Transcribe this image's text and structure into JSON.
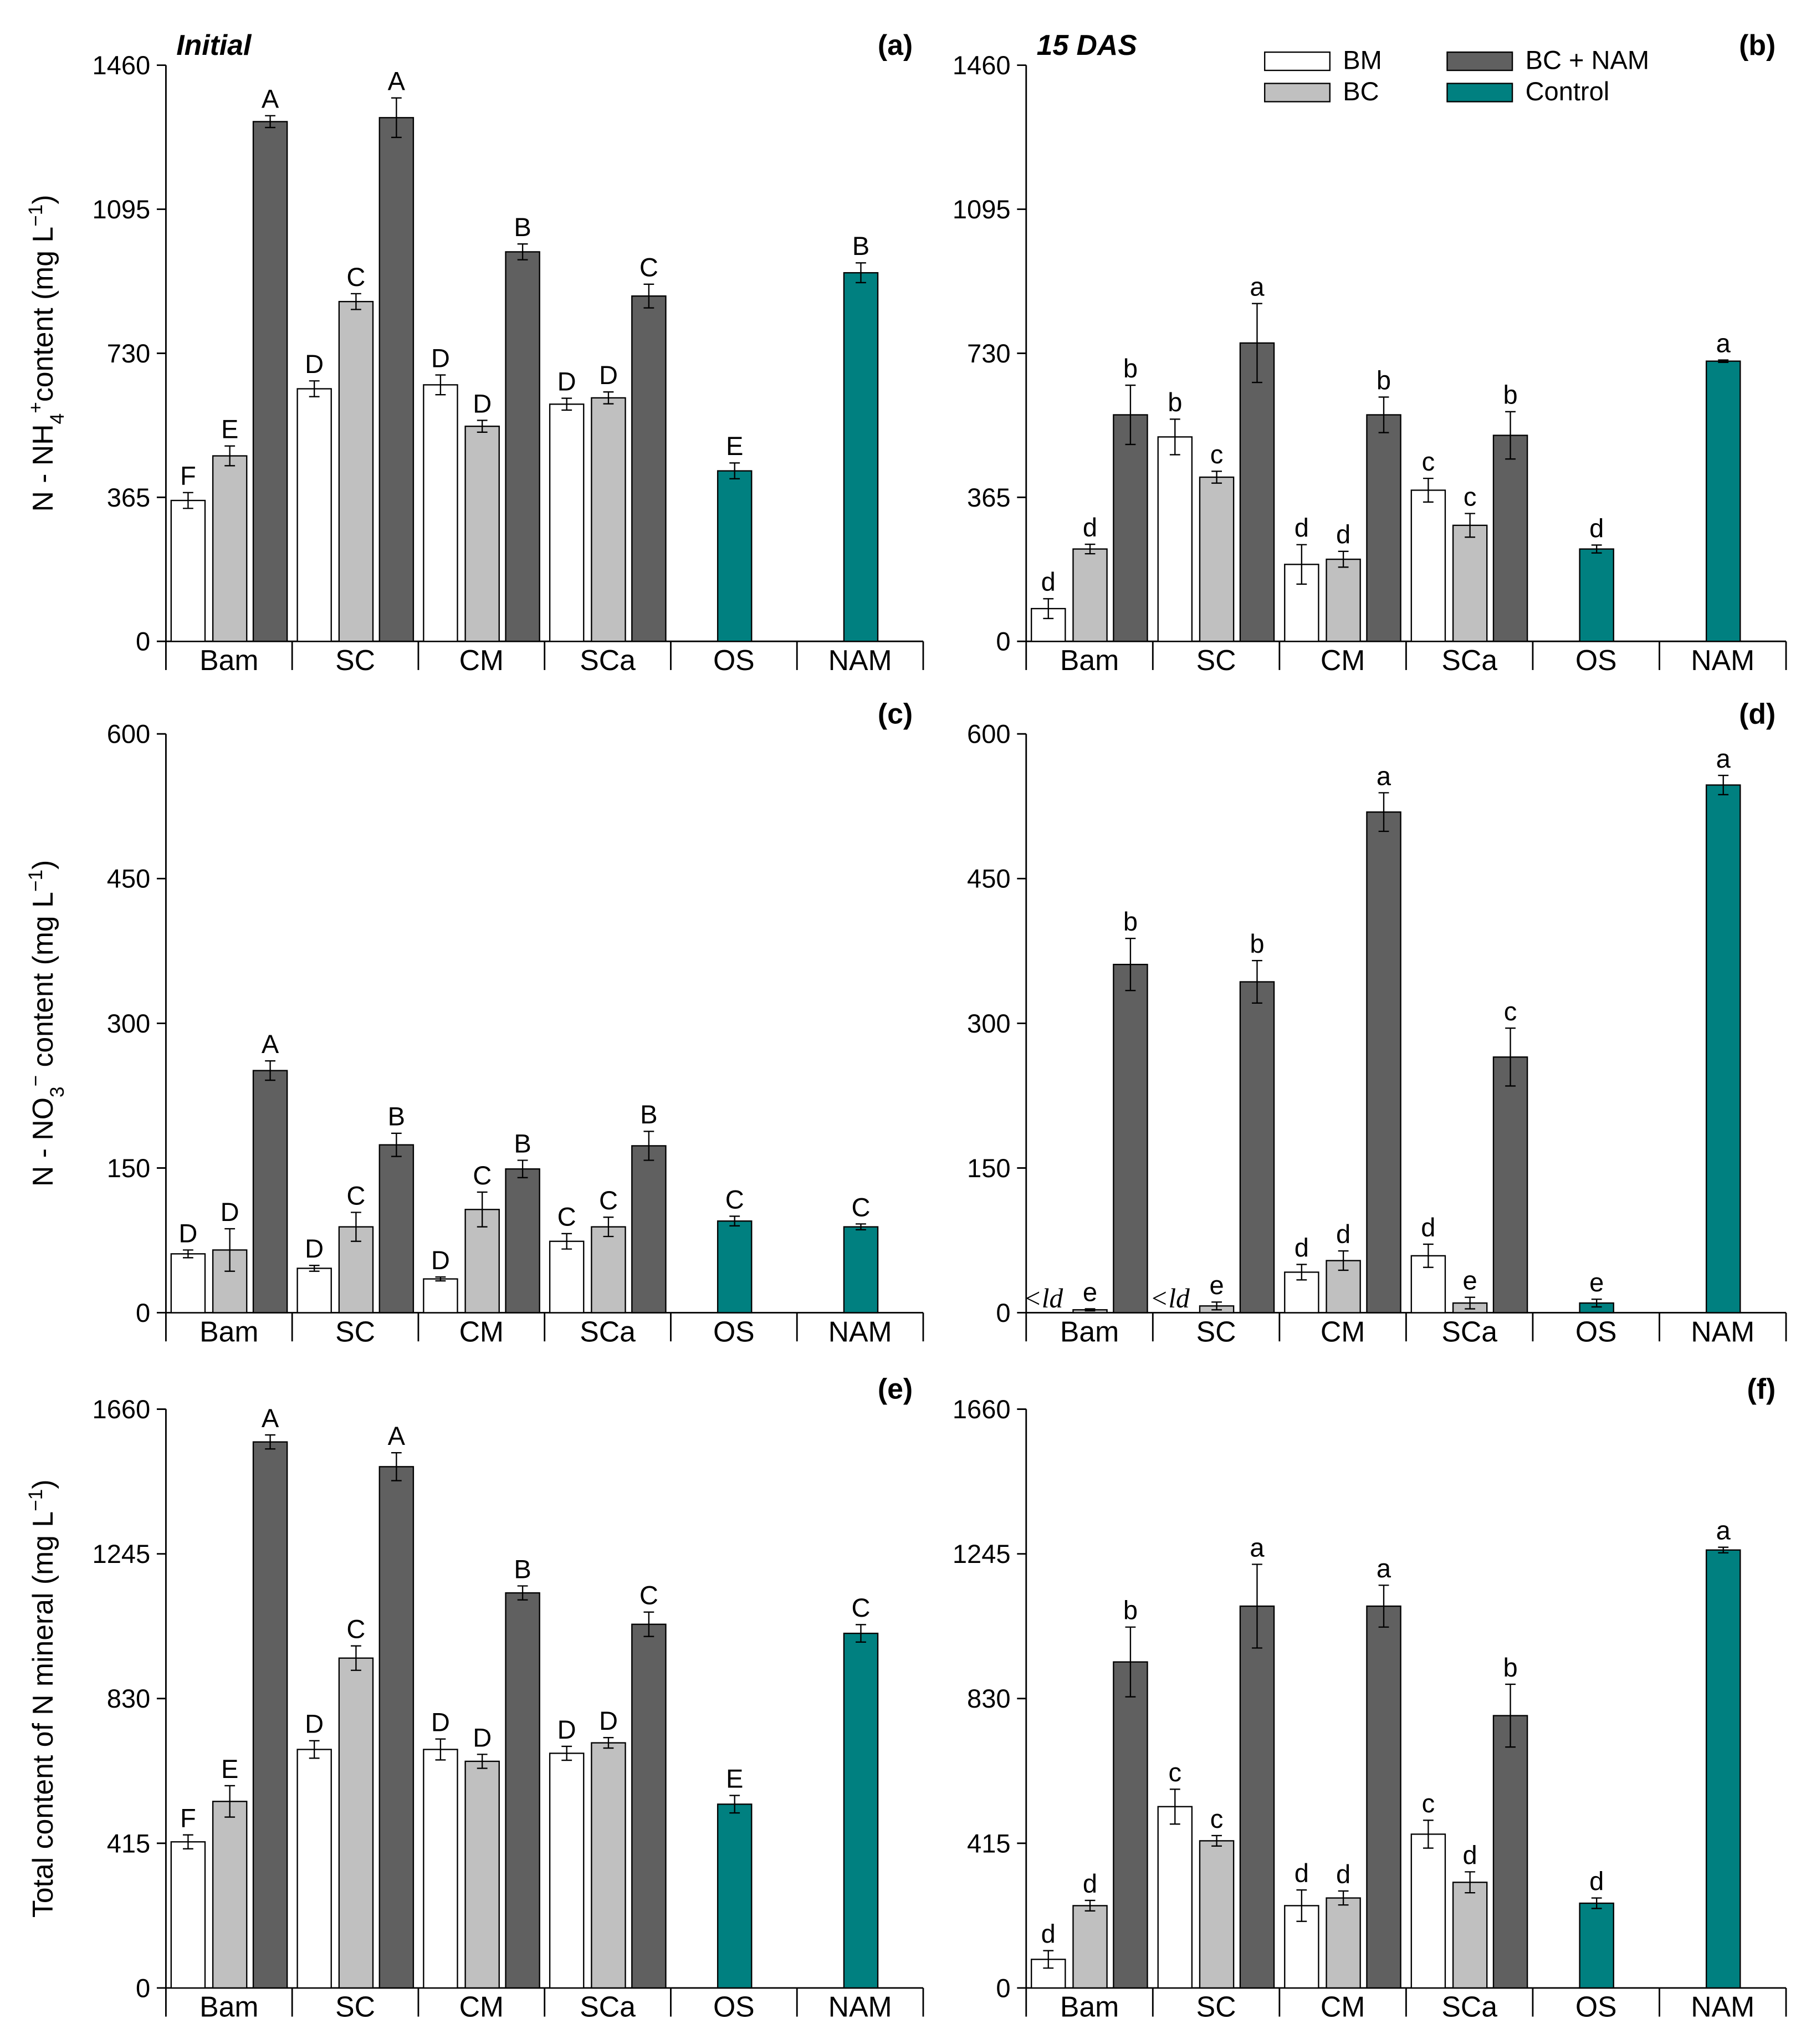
{
  "legend": [
    {
      "name": "BM",
      "color": "#ffffff"
    },
    {
      "name": "BC",
      "color": "#c0c0c0"
    },
    {
      "name": "BC + NAM",
      "color": "#606060"
    },
    {
      "name": "Control",
      "color": "#008080"
    }
  ],
  "chart_data": [
    {
      "type": "bar",
      "title": "Initial",
      "panel": "(a)",
      "ylabel": [
        {
          "text": "N - NH"
        },
        {
          "text": "4",
          "script": "sub"
        },
        {
          "text": "+",
          "script": "super"
        },
        {
          "text": "content (mg L"
        },
        {
          "text": "−1",
          "script": "super"
        },
        {
          "text": ")"
        }
      ],
      "categories": [
        "Bam",
        "SC",
        "CM",
        "SCa",
        "OS",
        "NAM"
      ],
      "ylim": [
        0,
        1460
      ],
      "yticks": [
        0,
        365,
        730,
        1095,
        1460
      ],
      "series": [
        {
          "values": [
            357,
            640,
            650,
            601,
            null,
            null
          ],
          "errors": [
            20,
            20,
            25,
            15,
            null,
            null
          ],
          "letters": [
            "F",
            "D",
            "D",
            "D",
            null,
            null
          ]
        },
        {
          "values": [
            470,
            861,
            545,
            617,
            null,
            null
          ],
          "errors": [
            25,
            20,
            15,
            15,
            null,
            null
          ],
          "letters": [
            "E",
            "C",
            "D",
            "D",
            null,
            null
          ]
        },
        {
          "values": [
            1317,
            1327,
            987,
            875,
            null,
            null
          ],
          "errors": [
            15,
            50,
            20,
            30,
            null,
            null
          ],
          "letters": [
            "A",
            "A",
            "B",
            "C",
            null,
            null
          ]
        },
        {
          "values": [
            null,
            null,
            null,
            null,
            432,
            934
          ],
          "errors": [
            null,
            null,
            null,
            null,
            20,
            25
          ],
          "letters": [
            null,
            null,
            null,
            null,
            "E",
            "B"
          ]
        }
      ]
    },
    {
      "type": "bar",
      "title": "15 DAS",
      "panel": "(b)",
      "show_legend": true,
      "categories": [
        "Bam",
        "SC",
        "CM",
        "SCa",
        "OS",
        "NAM"
      ],
      "ylim": [
        0,
        1460
      ],
      "yticks": [
        0,
        365,
        730,
        1095,
        1460
      ],
      "series": [
        {
          "values": [
            83,
            518,
            195,
            383,
            null,
            null
          ],
          "errors": [
            25,
            45,
            50,
            30,
            null,
            null
          ],
          "letters": [
            "d",
            "b",
            "d",
            "c",
            null,
            null
          ]
        },
        {
          "values": [
            234,
            416,
            208,
            294,
            null,
            null
          ],
          "errors": [
            12,
            15,
            20,
            30,
            null,
            null
          ],
          "letters": [
            "d",
            "c",
            "d",
            "c",
            null,
            null
          ]
        },
        {
          "values": [
            574,
            756,
            574,
            522,
            null,
            null
          ],
          "errors": [
            75,
            100,
            45,
            60,
            null,
            null
          ],
          "letters": [
            "b",
            "a",
            "b",
            "b",
            null,
            null
          ]
        },
        {
          "values": [
            null,
            null,
            null,
            null,
            234,
            710
          ],
          "errors": [
            null,
            null,
            null,
            null,
            10,
            3
          ],
          "letters": [
            null,
            null,
            null,
            null,
            "d",
            "a"
          ]
        }
      ]
    },
    {
      "type": "bar",
      "panel": "(c)",
      "ylabel": [
        {
          "text": "N - NO"
        },
        {
          "text": "3",
          "script": "sub"
        },
        {
          "text": "−",
          "script": "super"
        },
        {
          "text": " content (mg L"
        },
        {
          "text": "−1",
          "script": "super"
        },
        {
          "text": ")"
        }
      ],
      "categories": [
        "Bam",
        "SC",
        "CM",
        "SCa",
        "OS",
        "NAM"
      ],
      "ylim": [
        0,
        600
      ],
      "yticks": [
        0,
        150,
        300,
        450,
        600
      ],
      "series": [
        {
          "values": [
            61,
            46,
            35,
            74,
            null,
            null
          ],
          "errors": [
            4,
            3,
            2,
            8,
            null,
            null
          ],
          "letters": [
            "D",
            "D",
            "D",
            "C",
            null,
            null
          ]
        },
        {
          "values": [
            65,
            89,
            107,
            89,
            null,
            null
          ],
          "errors": [
            22,
            15,
            18,
            10,
            null,
            null
          ],
          "letters": [
            "D",
            "C",
            "C",
            "C",
            null,
            null
          ]
        },
        {
          "values": [
            251,
            174,
            149,
            173,
            null,
            null
          ],
          "errors": [
            10,
            12,
            9,
            15,
            null,
            null
          ],
          "letters": [
            "A",
            "B",
            "B",
            "B",
            null,
            null
          ]
        },
        {
          "values": [
            null,
            null,
            null,
            null,
            95,
            89
          ],
          "errors": [
            null,
            null,
            null,
            null,
            5,
            3
          ],
          "letters": [
            null,
            null,
            null,
            null,
            "C",
            "C"
          ]
        }
      ]
    },
    {
      "type": "bar",
      "panel": "(d)",
      "categories": [
        "Bam",
        "SC",
        "CM",
        "SCa",
        "OS",
        "NAM"
      ],
      "ylim": [
        0,
        600
      ],
      "yticks": [
        0,
        150,
        300,
        450,
        600
      ],
      "series": [
        {
          "values": [
            null,
            null,
            42,
            59,
            null,
            null
          ],
          "errors": [
            null,
            null,
            8,
            12,
            null,
            null
          ],
          "letters": [
            "<ld",
            "<ld",
            "d",
            "d",
            null,
            null
          ]
        },
        {
          "values": [
            3,
            7,
            54,
            10,
            null,
            null
          ],
          "errors": [
            1,
            4,
            10,
            6,
            null,
            null
          ],
          "letters": [
            "e",
            "e",
            "d",
            "e",
            null,
            null
          ]
        },
        {
          "values": [
            361,
            343,
            519,
            265,
            null,
            null
          ],
          "errors": [
            27,
            22,
            20,
            30,
            null,
            null
          ],
          "letters": [
            "b",
            "b",
            "a",
            "c",
            null,
            null
          ]
        },
        {
          "values": [
            null,
            null,
            null,
            null,
            10,
            547
          ],
          "errors": [
            null,
            null,
            null,
            null,
            4,
            10
          ],
          "letters": [
            null,
            null,
            null,
            null,
            "e",
            "a"
          ]
        }
      ]
    },
    {
      "type": "bar",
      "panel": "(e)",
      "ylabel": [
        {
          "text": "Total content of N mineral (mg L"
        },
        {
          "text": "−1",
          "script": "super"
        },
        {
          "text": ")"
        }
      ],
      "categories": [
        "Bam",
        "SC",
        "CM",
        "SCa",
        "OS",
        "NAM"
      ],
      "ylim": [
        0,
        1660
      ],
      "yticks": [
        0,
        415,
        830,
        1245,
        1660
      ],
      "series": [
        {
          "values": [
            419,
            684,
            684,
            673,
            null,
            null
          ],
          "errors": [
            20,
            25,
            30,
            20,
            null,
            null
          ],
          "letters": [
            "F",
            "D",
            "D",
            "D",
            null,
            null
          ]
        },
        {
          "values": [
            535,
            946,
            650,
            703,
            null,
            null
          ],
          "errors": [
            45,
            35,
            20,
            15,
            null,
            null
          ],
          "letters": [
            "E",
            "C",
            "D",
            "D",
            null,
            null
          ]
        },
        {
          "values": [
            1566,
            1495,
            1133,
            1043,
            null,
            null
          ],
          "errors": [
            20,
            40,
            20,
            35,
            null,
            null
          ],
          "letters": [
            "A",
            "A",
            "B",
            "C",
            null,
            null
          ]
        },
        {
          "values": [
            null,
            null,
            null,
            null,
            527,
            1017
          ],
          "errors": [
            null,
            null,
            null,
            null,
            25,
            25
          ],
          "letters": [
            null,
            null,
            null,
            null,
            "E",
            "C"
          ]
        }
      ]
    },
    {
      "type": "bar",
      "panel": "(f)",
      "categories": [
        "Bam",
        "SC",
        "CM",
        "SCa",
        "OS",
        "NAM"
      ],
      "ylim": [
        0,
        1660
      ],
      "yticks": [
        0,
        415,
        830,
        1245,
        1660
      ],
      "series": [
        {
          "values": [
            82,
            520,
            236,
            441,
            null,
            null
          ],
          "errors": [
            25,
            50,
            45,
            40,
            null,
            null
          ],
          "letters": [
            "d",
            "c",
            "d",
            "c",
            null,
            null
          ]
        },
        {
          "values": [
            236,
            422,
            258,
            303,
            null,
            null
          ],
          "errors": [
            15,
            15,
            20,
            30,
            null,
            null
          ],
          "letters": [
            "d",
            "c",
            "d",
            "d",
            null,
            null
          ]
        },
        {
          "values": [
            935,
            1095,
            1095,
            781,
            null,
            null
          ],
          "errors": [
            100,
            120,
            60,
            90,
            null,
            null
          ],
          "letters": [
            "b",
            "a",
            "a",
            "b",
            null,
            null
          ]
        },
        {
          "values": [
            null,
            null,
            null,
            null,
            243,
            1256
          ],
          "errors": [
            null,
            null,
            null,
            null,
            15,
            8
          ],
          "letters": [
            null,
            null,
            null,
            null,
            "d",
            "a"
          ]
        }
      ]
    }
  ]
}
